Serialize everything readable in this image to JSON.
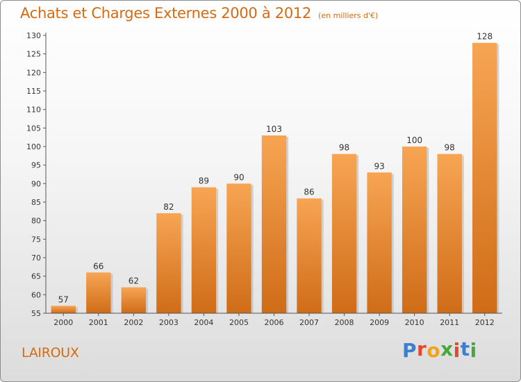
{
  "chart_data": {
    "type": "bar",
    "title": "Achats et Charges Externes 2000 à 2012",
    "subtitle": "(en milliers d'€)",
    "categories": [
      "2000",
      "2001",
      "2002",
      "2003",
      "2004",
      "2005",
      "2006",
      "2007",
      "2008",
      "2009",
      "2010",
      "2011",
      "2012"
    ],
    "values": [
      57,
      66,
      62,
      82,
      89,
      90,
      103,
      86,
      98,
      93,
      100,
      98,
      128
    ],
    "ylim": [
      55,
      130
    ],
    "yticks": [
      55,
      60,
      65,
      70,
      75,
      80,
      85,
      90,
      95,
      100,
      105,
      110,
      115,
      120,
      125,
      130
    ],
    "grid": false,
    "colors": {
      "bar_light": "#f7a553",
      "bar_dark": "#cf6c18",
      "axis": "#555555",
      "text": "#333333"
    }
  },
  "footer": {
    "commune": "LAIROUX",
    "brand_letters": [
      "P",
      "r",
      "o",
      "x",
      "i",
      "t",
      "i"
    ],
    "brand_colors": [
      "#3d7fcf",
      "#e4462f",
      "#f1a21b",
      "#48a83c",
      "#e4462f",
      "#3d7fcf",
      "#48a83c"
    ]
  }
}
